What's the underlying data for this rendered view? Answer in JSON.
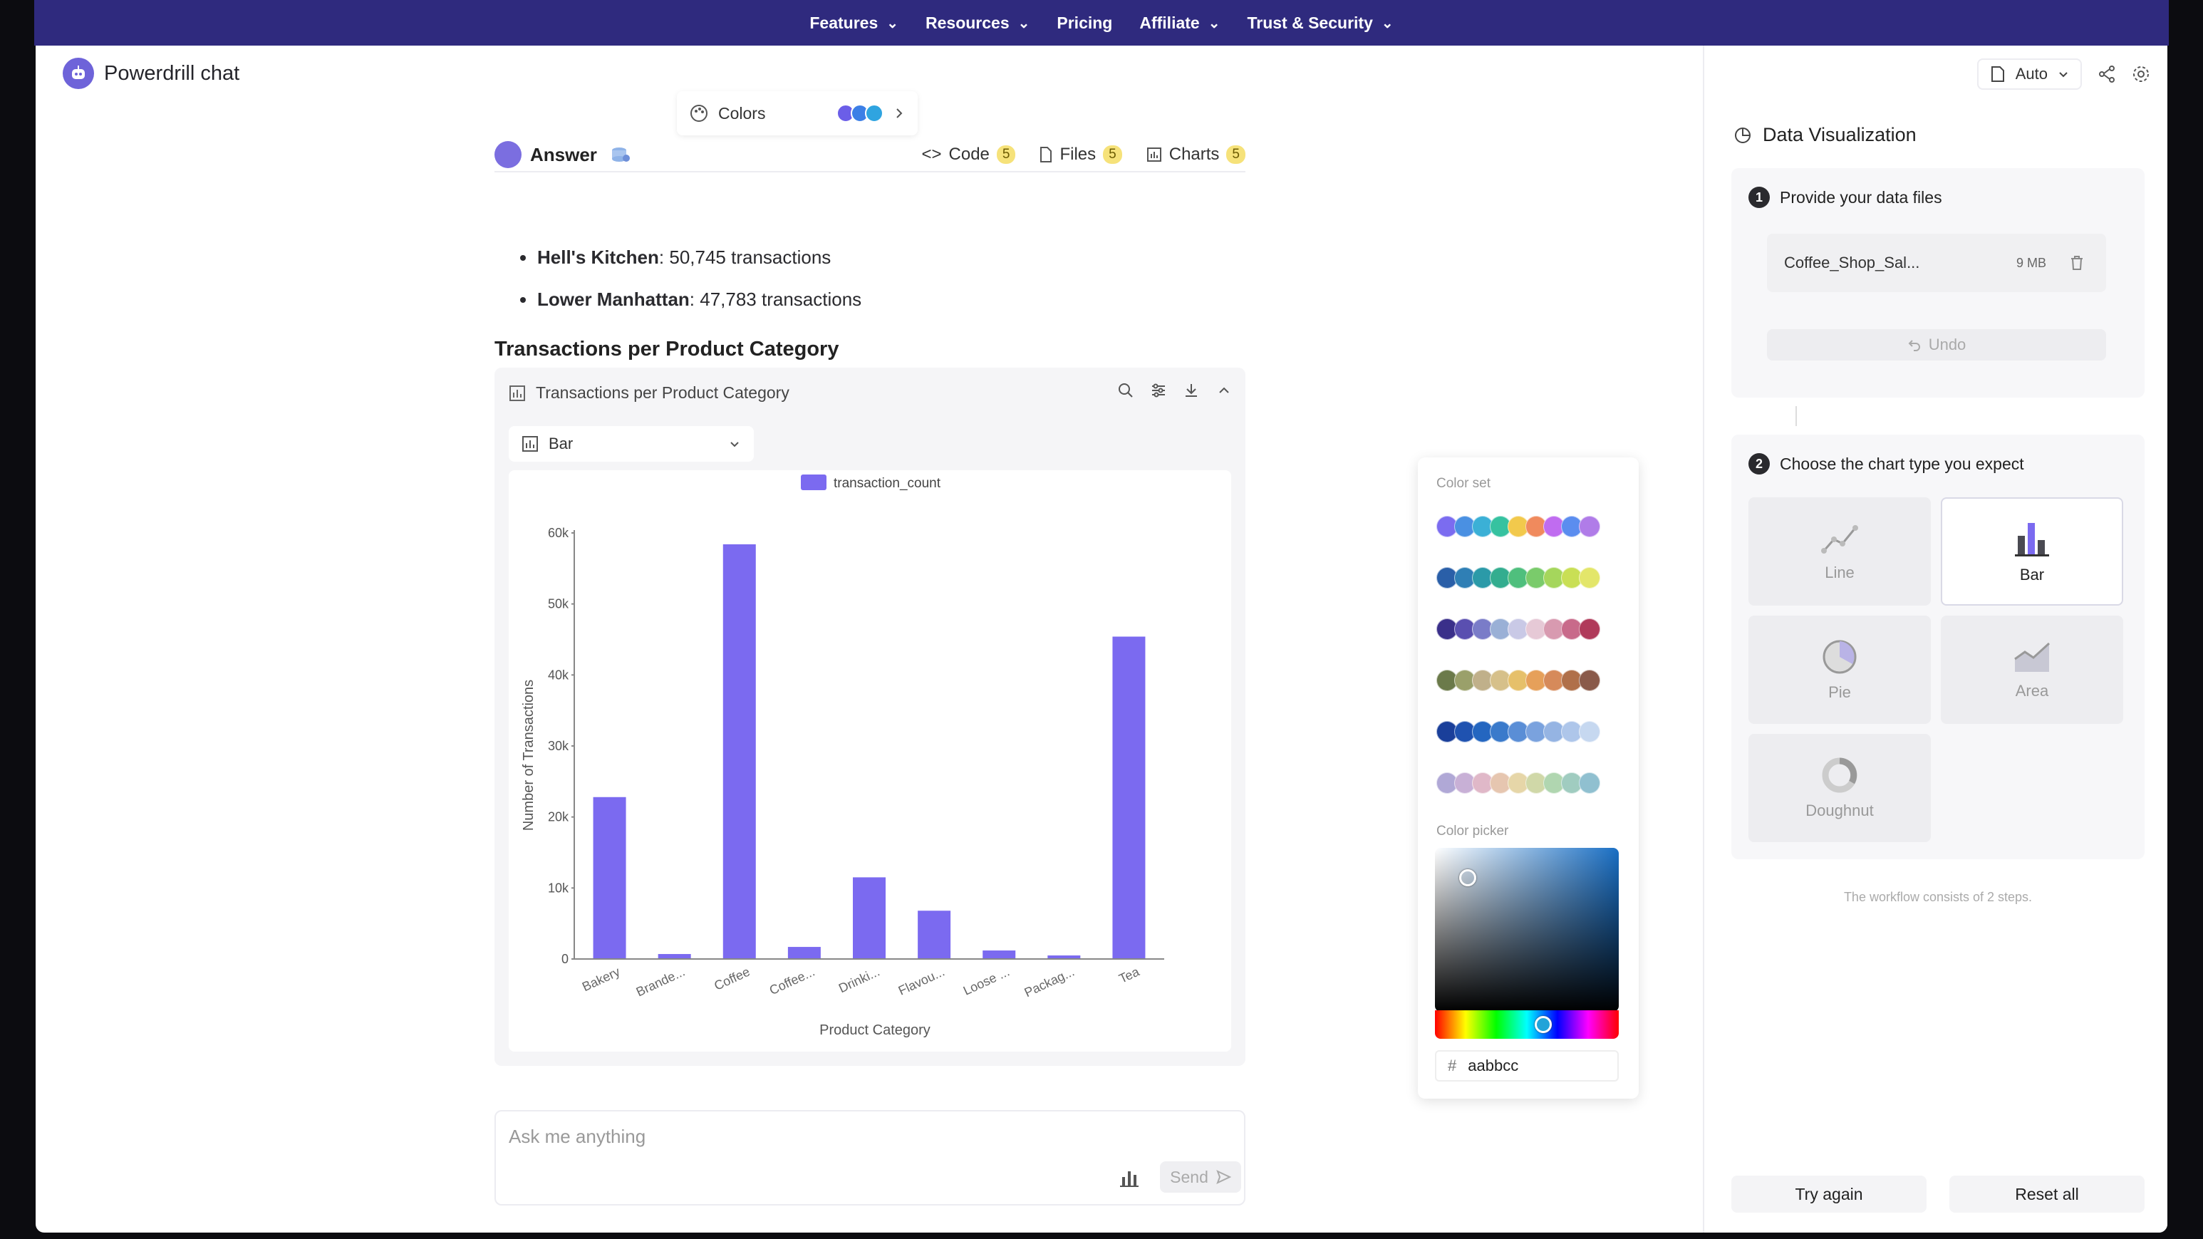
{
  "nav": {
    "items": [
      {
        "label": "Features",
        "has_menu": true
      },
      {
        "label": "Resources",
        "has_menu": true
      },
      {
        "label": "Pricing",
        "has_menu": false
      },
      {
        "label": "Affiliate",
        "has_menu": true
      },
      {
        "label": "Trust & Security",
        "has_menu": true
      }
    ]
  },
  "brand": {
    "name": "Powerdrill chat"
  },
  "answer": {
    "title": "Answer",
    "tabs": [
      {
        "label": "Code",
        "count": "5",
        "icon": "code-icon"
      },
      {
        "label": "Files",
        "count": "5",
        "icon": "file-icon"
      },
      {
        "label": "Charts",
        "count": "5",
        "icon": "chart-icon"
      }
    ],
    "bullets": [
      {
        "bold": "Hell's Kitchen",
        "rest": ": 50,745 transactions"
      },
      {
        "bold": "Lower Manhattan",
        "rest": ": 47,783 transactions"
      }
    ],
    "section_title": "Transactions per Product Category"
  },
  "chart_card": {
    "title": "Transactions per Product Category",
    "type_select": "Bar",
    "colors_label": "Colors",
    "colors_preview": [
      "#6b5ee8",
      "#3c7fe6",
      "#2fa4e0"
    ]
  },
  "chart_data": {
    "type": "bar",
    "categories": [
      "Bakery",
      "Brande...",
      "Coffee",
      "Coffee...",
      "Drinki...",
      "Flavou...",
      "Loose ...",
      "Packag...",
      "Tea"
    ],
    "series": [
      {
        "name": "transaction_count",
        "values": [
          22800,
          700,
          58400,
          1700,
          11500,
          6800,
          1200,
          500,
          45400
        ],
        "color": "#7b6af0"
      }
    ],
    "xlabel": "Product Category",
    "ylabel": "Number of Transactions",
    "ylim": [
      0,
      60000
    ],
    "yticks": [
      "0",
      "10k",
      "20k",
      "30k",
      "40k",
      "50k",
      "60k"
    ],
    "legend": "top-center",
    "grid": false
  },
  "color_popover": {
    "set_label": "Color set",
    "picker_label": "Color picker",
    "hex_value": "aabbcc",
    "sets": [
      [
        "#7b6cf0",
        "#4a90e2",
        "#3bb0d6",
        "#36c2a0",
        "#f2c94c",
        "#f08a5d",
        "#c06cf0",
        "#5b8def",
        "#b07ce8"
      ],
      [
        "#2a5fa8",
        "#2f7fb5",
        "#2b9aa8",
        "#33ad8f",
        "#4fbf7d",
        "#7acb6b",
        "#a5d65c",
        "#c9df55",
        "#e3e66a"
      ],
      [
        "#3a2f8a",
        "#5a4fb0",
        "#7a7cc8",
        "#9ab0d6",
        "#c9c9e6",
        "#e6c9d6",
        "#d89ab0",
        "#c86a8a",
        "#b03a5a"
      ],
      [
        "#6b7a4a",
        "#9aa06a",
        "#c0b08a",
        "#d6c08a",
        "#e6c06a",
        "#e6a05a",
        "#d68a5a",
        "#b0704a",
        "#8a5a4a"
      ],
      [
        "#1a3f9a",
        "#1f52b0",
        "#2466c0",
        "#3a7acb",
        "#5a8ed6",
        "#7aa2de",
        "#95b4e3",
        "#aec6ea",
        "#c6d8f0"
      ],
      [
        "#b0a8d6",
        "#c8b0d6",
        "#e0b8c8",
        "#e6c6b0",
        "#e6d6a8",
        "#d0d8a8",
        "#b0d6b0",
        "#a0ccc0",
        "#90c0d0"
      ]
    ]
  },
  "ask": {
    "placeholder": "Ask me anything",
    "send_label": "Send"
  },
  "right_panel": {
    "auto_label": "Auto",
    "title": "Data Visualization",
    "step1": {
      "num": "1",
      "title": "Provide your data files",
      "file_name": "Coffee_Shop_Sal...",
      "file_size": "9 MB",
      "undo_label": "Undo"
    },
    "step2": {
      "num": "2",
      "title": "Choose the chart type you expect",
      "types": [
        {
          "label": "Line",
          "selected": false
        },
        {
          "label": "Bar",
          "selected": true
        },
        {
          "label": "Pie",
          "selected": false
        },
        {
          "label": "Area",
          "selected": false
        },
        {
          "label": "Doughnut",
          "selected": false
        }
      ]
    },
    "workflow_note": "The workflow consists of 2 steps.",
    "try_again_label": "Try again",
    "reset_label": "Reset all"
  }
}
